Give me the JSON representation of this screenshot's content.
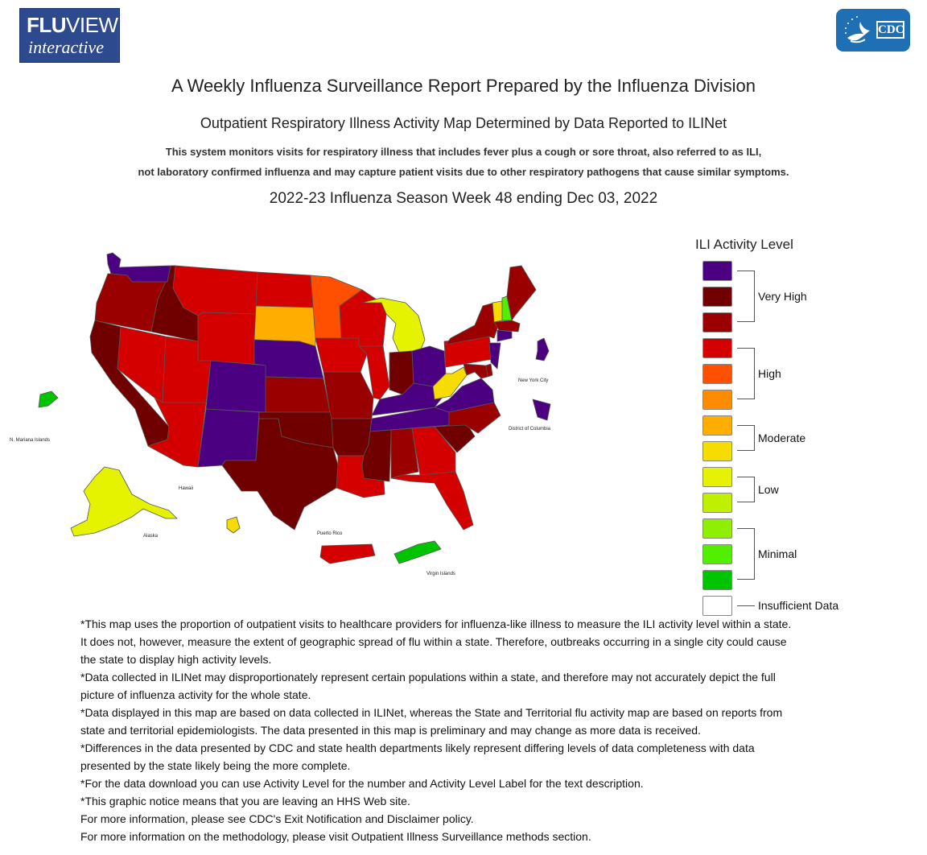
{
  "header": {
    "logo_left_line1_bold": "FLU",
    "logo_left_line1_rest": "VIEW",
    "logo_left_line2": "interactive",
    "logo_right_text": "CDC"
  },
  "titles": {
    "main": "A Weekly Influenza Surveillance Report Prepared by the Influenza Division",
    "subtitle": "Outpatient Respiratory Illness Activity Map Determined by Data Reported to ILINet",
    "description_line1": "This system monitors visits for respiratory illness that includes fever plus a cough or sore throat, also referred to as ILI,",
    "description_line2": "not laboratory confirmed influenza and may capture patient visits due to other respiratory pathogens that cause similar symptoms.",
    "week": "2022-23 Influenza Season Week 48 ending Dec 03, 2022"
  },
  "map_labels": {
    "nmi": "N. Mariana Islands",
    "hawaii": "Hawaii",
    "alaska": "Alaska",
    "puerto_rico": "Puerto Rico",
    "virgin_islands": "Virgin Islands",
    "nyc": "New York City",
    "dc": "District of Columbia"
  },
  "legend": {
    "title": "ILI Activity Level",
    "levels": [
      {
        "level": 13,
        "color": "#4b0082"
      },
      {
        "level": 12,
        "color": "#700000"
      },
      {
        "level": 11,
        "color": "#9a0000"
      },
      {
        "level": 10,
        "color": "#d40000"
      },
      {
        "level": 9,
        "color": "#ff4f00"
      },
      {
        "level": 8,
        "color": "#ff8c00"
      },
      {
        "level": 7,
        "color": "#ffae00"
      },
      {
        "level": 6,
        "color": "#f7dc00"
      },
      {
        "level": 5,
        "color": "#e5f200"
      },
      {
        "level": 4,
        "color": "#bef000"
      },
      {
        "level": 3,
        "color": "#8ef000"
      },
      {
        "level": 2,
        "color": "#52f000"
      },
      {
        "level": 1,
        "color": "#00c400"
      },
      {
        "level": 0,
        "color": "#ffffff"
      }
    ],
    "groups": {
      "very_high": "Very High",
      "high": "High",
      "moderate": "Moderate",
      "low": "Low",
      "minimal": "Minimal",
      "insufficient": "Insufficient Data"
    }
  },
  "states": {
    "WA": 13,
    "OR": 11,
    "CA": 12,
    "ID": 12,
    "NV": 10,
    "MT": 10,
    "WY": 10,
    "UT": 10,
    "AZ": 10,
    "CO": 13,
    "NM": 13,
    "ND": 10,
    "SD": 7,
    "NE": 13,
    "KS": 11,
    "OK": 12,
    "TX": 12,
    "MN": 9,
    "IA": 10,
    "MO": 11,
    "AR": 12,
    "LA": 10,
    "WI": 10,
    "IL": 10,
    "MI": 5,
    "IN": 12,
    "OH": 13,
    "KY": 13,
    "TN": 13,
    "MS": 12,
    "AL": 11,
    "GA": 10,
    "FL": 10,
    "SC": 12,
    "NC": 11,
    "VA": 13,
    "WV": 6,
    "PA": 10,
    "NY": 11,
    "VT": 6,
    "NH": 2,
    "ME": 11,
    "MA": 11,
    "NJ": 13,
    "DE": 11,
    "MD": 11,
    "CT": 13,
    "AK": 5,
    "HI": 6,
    "PR": 10,
    "VI": 1,
    "MP": 1,
    "NYC": 13,
    "DC": 13
  },
  "notes": [
    "*This map uses the proportion of outpatient visits to healthcare providers for influenza-like illness to measure the ILI activity level within a state.",
    "It does not, however, measure the extent of geographic spread of flu within a state. Therefore, outbreaks occurring in a single city could cause",
    "the state to display high activity levels.",
    "*Data collected in ILINet may disproportionately represent certain populations within a state, and therefore may not accurately depict the full",
    "picture of influenza activity for the whole state.",
    "*Data displayed in this map are based on data collected in ILINet, whereas the State and Territorial flu activity map are based on reports from",
    "state and territorial epidemiologists. The data presented in this map is preliminary and may change as more data is received.",
    "*Differences in the data presented by CDC and state health departments likely represent differing levels of data completeness with data",
    "presented by the state likely being the more complete.",
    "*For the data download you can use Activity Level for the number and Activity Level Label for the text description.",
    "*This graphic notice means that you are leaving an HHS Web site.",
    "For more information, please see CDC's Exit Notification and Disclaimer policy.",
    "For more information on the methodology, please visit Outpatient Illness Surveillance methods section."
  ]
}
